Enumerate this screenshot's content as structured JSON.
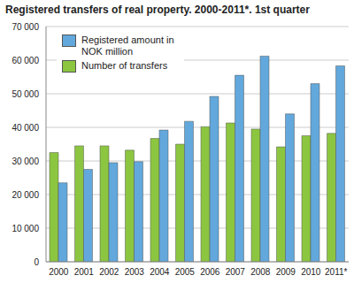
{
  "chart_data": {
    "type": "bar",
    "title": "Registered transfers of real property. 2000-2011*. 1st quarter",
    "categories": [
      "2000",
      "2001",
      "2002",
      "2003",
      "2004",
      "2005",
      "2006",
      "2007",
      "2008",
      "2009",
      "2010",
      "2011*"
    ],
    "series": [
      {
        "name": "Registered amount in NOK million",
        "color": "#62a8dc",
        "values": [
          23500,
          27500,
          29500,
          29800,
          39200,
          41800,
          49200,
          55500,
          61200,
          44000,
          53000,
          58300
        ]
      },
      {
        "name": "Number of transfers",
        "color": "#8cc641",
        "values": [
          32500,
          34500,
          34500,
          33200,
          36700,
          35000,
          40200,
          41300,
          39500,
          34200,
          37500,
          38200
        ]
      }
    ],
    "ylim": [
      0,
      70000
    ],
    "yticks": [
      0,
      {
        "value": 10000,
        "label": "10 000"
      },
      {
        "value": 20000,
        "label": "20 000"
      },
      {
        "value": 30000,
        "label": "30 000"
      },
      {
        "value": 40000,
        "label": "40 000"
      },
      {
        "value": 50000,
        "label": "50 000"
      },
      {
        "value": 60000,
        "label": "60 000"
      },
      {
        "value": 70000,
        "label": "70 000"
      }
    ],
    "grid": true,
    "legend": "top-left"
  }
}
